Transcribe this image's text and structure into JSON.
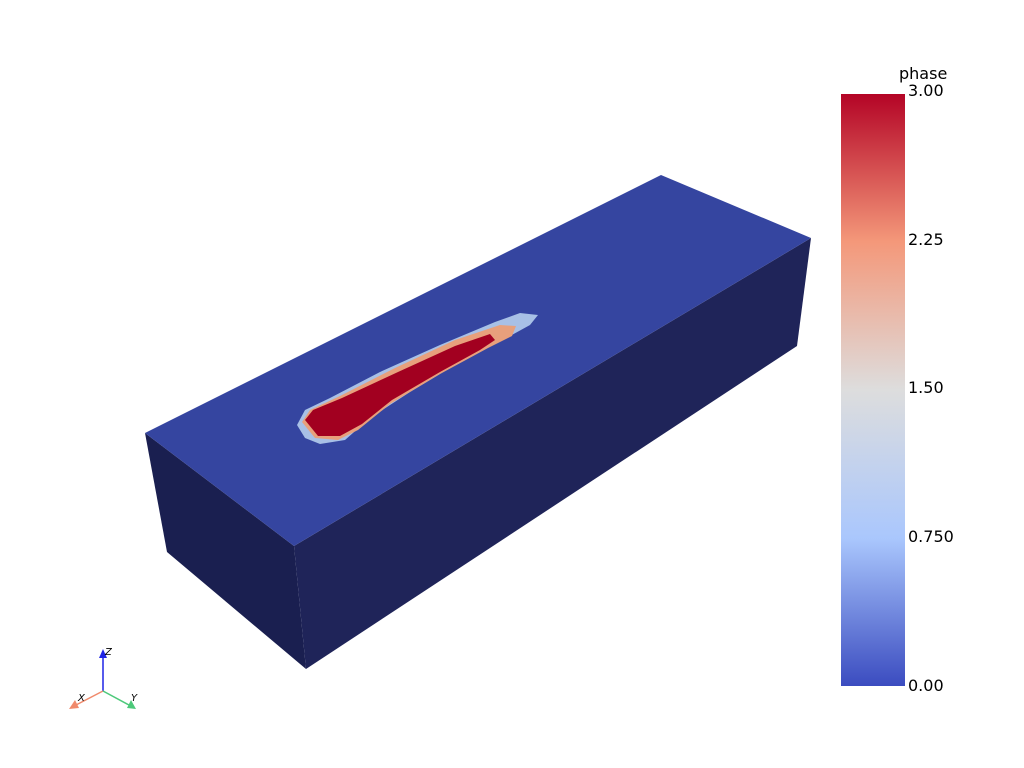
{
  "scalar_bar": {
    "title": "phase",
    "ticks": [
      "3.00",
      "2.25",
      "1.50",
      "0.750",
      "0.00"
    ],
    "colors": {
      "stops": [
        "#b40426",
        "#f4987a",
        "#dddddd",
        "#aac7fd",
        "#3b4cc0"
      ]
    }
  },
  "orientation_axes": {
    "x_label": "X",
    "y_label": "Y",
    "z_label": "Z",
    "colors": {
      "x": "#f08a6c",
      "y": "#4dc97a",
      "z": "#1f24e6"
    }
  },
  "mesh_colors": {
    "top_face": "#3545a0",
    "front_face": "#1f2459",
    "side_face": "#1a1f50",
    "pool_outer": "#a8c0e6",
    "pool_middle": "#e8a07c",
    "pool_core": "#a20020"
  }
}
